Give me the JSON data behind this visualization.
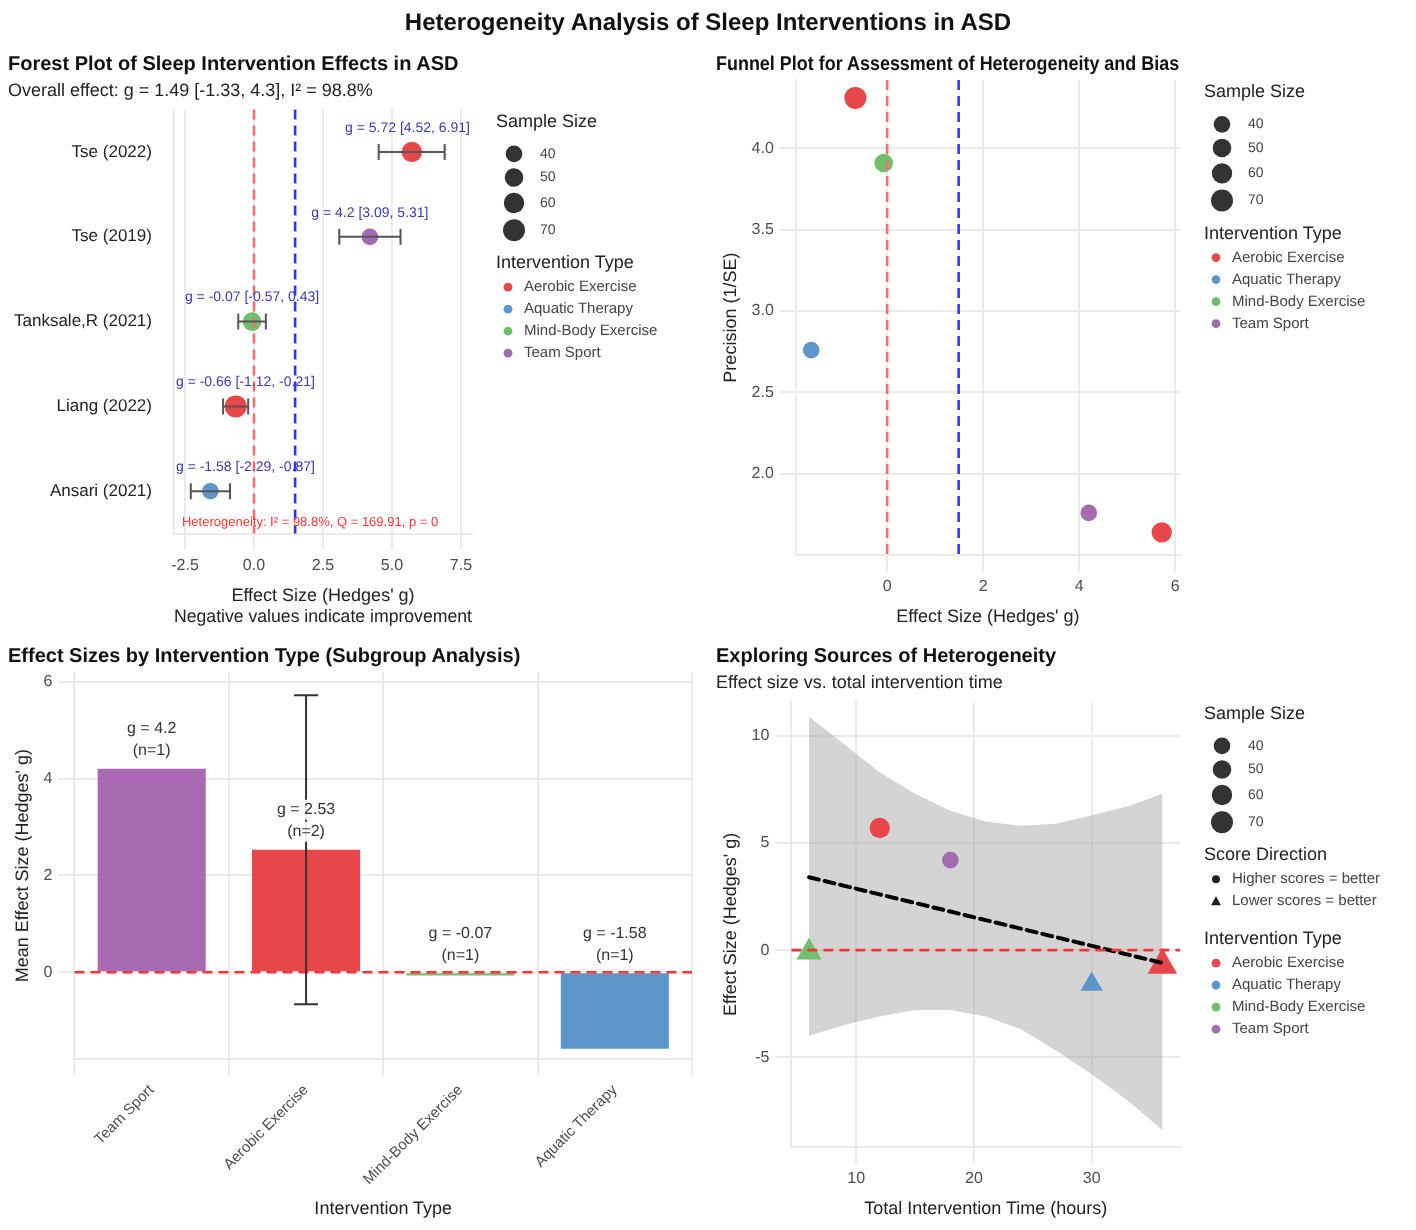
{
  "chart_data": [
    {
      "type": "other",
      "title": "Heterogeneity Analysis of Sleep Interventions in ASD"
    },
    {
      "type": "scatter",
      "orientation": "horizontal",
      "title": "Forest Plot of Sleep Intervention Effects in ASD",
      "subtitle": "Overall effect: g = 1.49 [-1.33, 4.3], I² = 98.8%",
      "xlabel": "Effect Size (Hedges' g)\nNegative values indicate improvement",
      "legend_title": "Intervention Type",
      "annotations": [
        "Sample Size",
        "Heterogeneity: I² = 98.8%, Q = 169.91, p = 0"
      ],
      "categories": [
        "Tse (2022)",
        "Tse (2019)",
        "Tanksale,R (2021)",
        "Liang (2022)",
        "Ansari (2021)"
      ],
      "series": [
        {
          "name": "Aerobic Exercise",
          "color": "#e8474a",
          "values": [
            5.72,
            null,
            null,
            -0.66,
            null
          ],
          "errors": [
            [
              4.52,
              6.91
            ],
            null,
            null,
            [
              -1.12,
              -0.21
            ],
            null
          ],
          "sizes": [
            60,
            null,
            null,
            70,
            null
          ],
          "value_labels": [
            "g = 5.72 [4.52, 6.91]",
            null,
            null,
            "g = -0.66 [-1.12, -0.21]",
            null
          ]
        },
        {
          "name": "Aquatic Therapy",
          "color": "#5d97c9",
          "values": [
            null,
            null,
            null,
            null,
            -1.58
          ],
          "errors": [
            null,
            null,
            null,
            null,
            [
              -2.29,
              -0.87
            ]
          ],
          "sizes": [
            null,
            null,
            null,
            null,
            40
          ],
          "value_labels": [
            null,
            null,
            null,
            null,
            "g = -1.58 [-2.29, -0.87]"
          ]
        },
        {
          "name": "Mind-Body Exercise",
          "color": "#6fbf6c",
          "values": [
            null,
            null,
            -0.07,
            null,
            null
          ],
          "errors": [
            null,
            null,
            [
              -0.57,
              0.43
            ],
            null,
            null
          ],
          "sizes": [
            null,
            null,
            50,
            null,
            null
          ],
          "value_labels": [
            null,
            null,
            "g = -0.07 [-0.57, 0.43]",
            null,
            null
          ]
        },
        {
          "name": "Team Sport",
          "color": "#a36bb0",
          "values": [
            null,
            4.2,
            null,
            null,
            null
          ],
          "errors": [
            null,
            [
              3.09,
              5.31
            ],
            null,
            null,
            null
          ],
          "sizes": [
            null,
            40,
            null,
            null,
            null
          ],
          "value_labels": [
            null,
            "g = 4.2 [3.09, 5.31]",
            null,
            null,
            null
          ]
        }
      ],
      "size_legend": [
        40,
        50,
        60,
        70
      ],
      "marker": "circle",
      "xlim": [
        -2.9,
        7.9
      ],
      "xticks": [
        -2.5,
        {
          "value": 0,
          "label": "0.0"
        },
        2.5,
        {
          "value": 5,
          "label": "5.0"
        },
        7.5
      ],
      "grid": "x",
      "legend": "right",
      "ref_lines": [
        {
          "axis": "x",
          "value": 0,
          "color": "#ff6b6b",
          "line_style": "dashed"
        },
        {
          "axis": "x",
          "value": 1.49,
          "color": "#3333ff",
          "line_style": "dashed"
        }
      ]
    },
    {
      "type": "scatter",
      "title": "Funnel Plot for Assessment of Heterogeneity and Bias",
      "xlabel": "Effect Size (Hedges' g)",
      "ylabel": "Precision (1/SE)",
      "legend_title": "Intervention Type",
      "annotations": [
        "Sample Size"
      ],
      "series": [
        {
          "name": "Aerobic Exercise",
          "color": "#e8474a",
          "x": [
            5.72,
            -0.66
          ],
          "values": [
            1.64,
            4.31
          ],
          "sizes": [
            60,
            70
          ]
        },
        {
          "name": "Aquatic Therapy",
          "color": "#5d97c9",
          "x": [
            -1.58
          ],
          "values": [
            2.76
          ],
          "sizes": [
            40
          ]
        },
        {
          "name": "Mind-Body Exercise",
          "color": "#6fbf6c",
          "x": [
            -0.07
          ],
          "values": [
            3.91
          ],
          "sizes": [
            50
          ]
        },
        {
          "name": "Team Sport",
          "color": "#a36bb0",
          "x": [
            4.2
          ],
          "values": [
            1.76
          ],
          "sizes": [
            40
          ]
        }
      ],
      "size_legend": [
        40,
        50,
        60,
        70
      ],
      "marker": "circle",
      "xlim": [
        -1.9,
        6.1
      ],
      "xticks": [
        0,
        2,
        4,
        6
      ],
      "ylim": [
        1.5,
        4.42
      ],
      "yticks": [
        {
          "value": 2,
          "label": "2.0"
        },
        2.5,
        {
          "value": 3,
          "label": "3.0"
        },
        3.5,
        {
          "value": 4,
          "label": "4.0"
        }
      ],
      "grid": true,
      "legend": "right",
      "ref_lines": [
        {
          "axis": "x",
          "value": 0,
          "color": "#ff6b6b",
          "line_style": "dashed"
        },
        {
          "axis": "x",
          "value": 1.49,
          "color": "#3333ff",
          "line_style": "dashed"
        }
      ]
    },
    {
      "type": "bar",
      "title": "Effect Sizes by Intervention Type (Subgroup Analysis)",
      "xlabel": "Intervention Type",
      "ylabel": "Mean Effect Size (Hedges' g)",
      "categories": [
        "Team Sport",
        "Aerobic Exercise",
        "Mind-Body Exercise",
        "Aquatic Therapy"
      ],
      "values": [
        4.2,
        2.53,
        -0.07,
        -1.58
      ],
      "colors": [
        "#a96ab3",
        "#e8474a",
        "#6fbf6c",
        "#5d97c9"
      ],
      "errors": [
        null,
        [
          -0.66,
          5.72
        ],
        null,
        null
      ],
      "value_labels": [
        "g = 4.2\n(n=1)",
        "g = 2.53\n(n=2)",
        "g = -0.07\n(n=1)",
        "g = -1.58\n(n=1)"
      ],
      "ylim": [
        -1.8,
        6.2
      ],
      "yticks": [
        0,
        2,
        4,
        6
      ],
      "grid": true,
      "ref_lines": [
        {
          "axis": "y",
          "value": 0,
          "color": "#ff3333",
          "line_style": "dashed"
        }
      ]
    },
    {
      "type": "scatter",
      "title": "Exploring Sources of Heterogeneity",
      "subtitle": "Effect size vs. total intervention time",
      "xlabel": "Total Intervention Time (hours)",
      "ylabel": "Effect Size (Hedges' g)",
      "legend_title": "Intervention Type",
      "annotations": [
        "Sample Size",
        "Score Direction",
        "Higher scores = better",
        "Lower scores = better"
      ],
      "series": [
        {
          "type": "line",
          "color": "#000000",
          "line_style": "dashed",
          "x": [
            6,
            9,
            12,
            15,
            18,
            21,
            24,
            27,
            30,
            33,
            36
          ],
          "values": [
            3.4,
            3.0,
            2.6,
            2.2,
            1.8,
            1.4,
            1.0,
            0.6,
            0.2,
            -0.2,
            -0.6
          ],
          "lower": [
            -4.0,
            -3.5,
            -3.1,
            -2.8,
            -2.8,
            -3.1,
            -3.7,
            -4.7,
            -5.8,
            -7.0,
            -8.4
          ],
          "upper": [
            10.9,
            9.6,
            8.3,
            7.3,
            6.5,
            6.0,
            5.8,
            5.9,
            6.3,
            6.7,
            7.3
          ]
        },
        {
          "name": "Aerobic Exercise",
          "color": "#e8474a",
          "x": [
            12,
            36
          ],
          "values": [
            5.7,
            -0.7
          ],
          "sizes": [
            60,
            70
          ],
          "marker": [
            "circle",
            "triangle"
          ]
        },
        {
          "name": "Aquatic Therapy",
          "color": "#5d97c9",
          "x": [
            30
          ],
          "values": [
            -1.6
          ],
          "sizes": [
            40
          ],
          "marker": [
            "triangle"
          ]
        },
        {
          "name": "Mind-Body Exercise",
          "color": "#6fbf6c",
          "x": [
            6
          ],
          "values": [
            -0.1
          ],
          "sizes": [
            50
          ],
          "marker": [
            "triangle"
          ]
        },
        {
          "name": "Team Sport",
          "color": "#a36bb0",
          "x": [
            18
          ],
          "values": [
            4.2
          ],
          "sizes": [
            40
          ],
          "marker": [
            "circle"
          ]
        }
      ],
      "size_legend": [
        40,
        50,
        60,
        70
      ],
      "xlim": [
        4.5,
        37.5
      ],
      "xticks": [
        10,
        20,
        30
      ],
      "ylim": [
        -9.2,
        11.6
      ],
      "yticks": [
        -5,
        0,
        5,
        10
      ],
      "grid": true,
      "legend": "right",
      "ref_lines": [
        {
          "axis": "y",
          "value": 0,
          "color": "#ff3333",
          "line_style": "dashed"
        }
      ]
    }
  ]
}
